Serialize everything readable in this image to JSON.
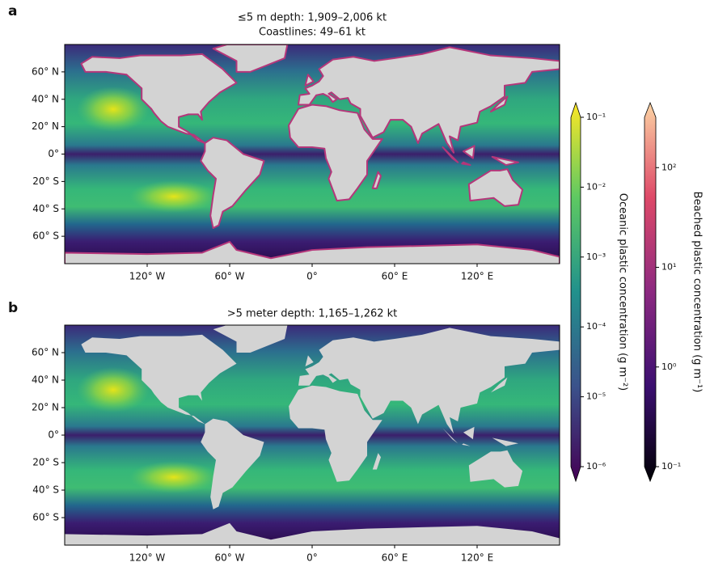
{
  "panels": [
    {
      "label": "a",
      "title": [
        "≤5 m depth: 1,909–2,006 kt",
        "Coastlines: 49–61 kt"
      ]
    },
    {
      "label": "b",
      "title": [
        ">5 meter depth: 1,165–1,262 kt"
      ]
    }
  ],
  "map": {
    "xlim": [
      -180,
      180
    ],
    "ylim": [
      -80,
      80
    ],
    "xticks": [
      {
        "value": -120,
        "label": "120° W"
      },
      {
        "value": -60,
        "label": "60° W"
      },
      {
        "value": 0,
        "label": "0°"
      },
      {
        "value": 60,
        "label": "60° E"
      },
      {
        "value": 120,
        "label": "120° E"
      }
    ],
    "yticks": [
      {
        "value": 60,
        "label": "60° N"
      },
      {
        "value": 40,
        "label": "40° N"
      },
      {
        "value": 20,
        "label": "20° N"
      },
      {
        "value": 0,
        "label": "0°"
      },
      {
        "value": -20,
        "label": "20° S"
      },
      {
        "value": -40,
        "label": "40° S"
      },
      {
        "value": -60,
        "label": "60° S"
      }
    ]
  },
  "colorbars": [
    {
      "label": "Oceanic plastic concentration (g m⁻²)",
      "scale": "log",
      "lim": [
        1e-06,
        0.1
      ],
      "ticks": [
        {
          "value": 0.1,
          "label": "10⁻¹"
        },
        {
          "value": 0.01,
          "label": "10⁻²"
        },
        {
          "value": 0.001,
          "label": "10⁻³"
        },
        {
          "value": 0.0001,
          "label": "10⁻⁴"
        },
        {
          "value": 1e-05,
          "label": "10⁻⁵"
        },
        {
          "value": 1e-06,
          "label": "10⁻⁶"
        }
      ]
    },
    {
      "label": "Beached plastic concentration (g m⁻¹)",
      "scale": "log",
      "lim": [
        0.1,
        320
      ],
      "ticks": [
        {
          "value": 100,
          "label": "10²"
        },
        {
          "value": 10,
          "label": "10¹"
        },
        {
          "value": 1,
          "label": "10⁰"
        },
        {
          "value": 0.1,
          "label": "10⁻¹"
        }
      ]
    }
  ]
}
